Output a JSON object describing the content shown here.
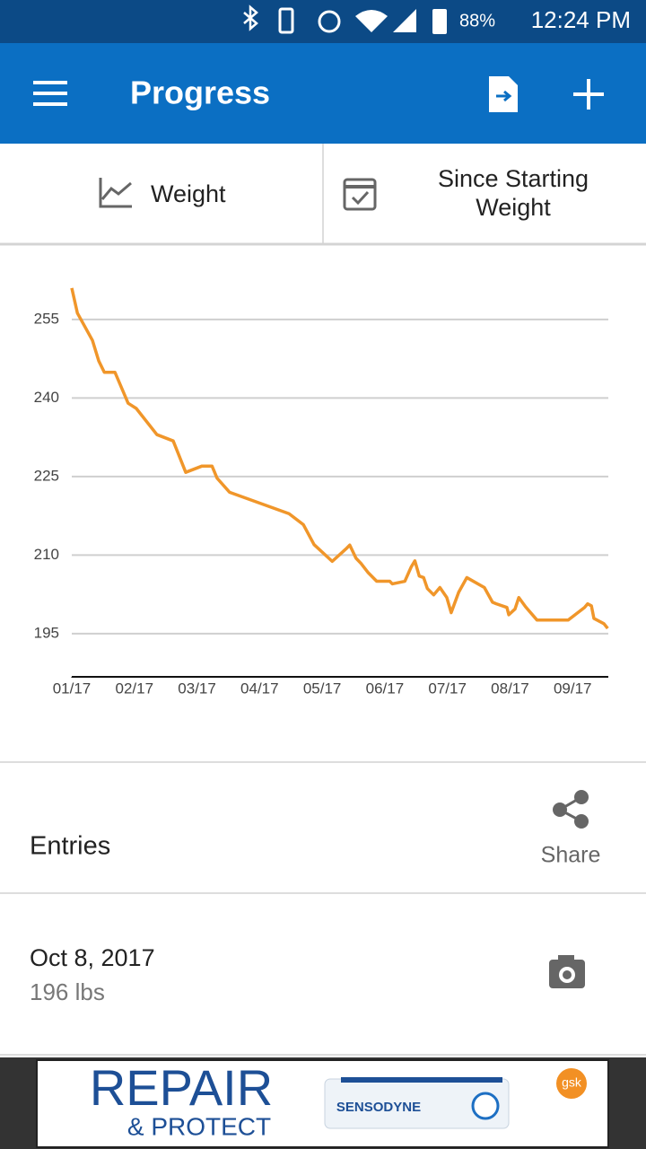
{
  "status_bar": {
    "battery": "88%",
    "time": "12:24 PM"
  },
  "app_bar": {
    "title": "Progress"
  },
  "tabs": {
    "metric": "Weight",
    "range_lines": [
      "Since Starting",
      "Weight"
    ]
  },
  "chart_data": {
    "type": "line",
    "x": [
      1.0,
      1.09,
      1.33,
      1.43,
      1.52,
      1.69,
      1.9,
      2.03,
      2.36,
      2.62,
      2.82,
      3.08,
      3.24,
      3.32,
      3.52,
      4.47,
      4.7,
      4.87,
      5.16,
      5.39,
      5.44,
      5.54,
      5.62,
      5.73,
      5.87,
      6.08,
      6.12,
      6.32,
      6.42,
      6.48,
      6.55,
      6.62,
      6.68,
      6.78,
      6.88,
      6.99,
      7.06,
      7.18,
      7.31,
      7.59,
      7.72,
      7.78,
      7.95,
      7.98,
      8.08,
      8.14,
      8.25,
      8.43,
      8.93,
      9.19,
      9.24,
      9.3,
      9.34,
      9.5,
      9.56
    ],
    "series": [
      {
        "color": "#f0962a",
        "values": [
          261.0,
          256.2,
          251.0,
          247.1,
          244.9,
          244.9,
          239.0,
          238.0,
          233.0,
          231.8,
          225.8,
          227.0,
          227.0,
          224.7,
          222.0,
          217.9,
          215.8,
          212.0,
          208.8,
          211.3,
          211.9,
          209.4,
          208.4,
          206.7,
          205.0,
          205.0,
          204.5,
          205.0,
          207.7,
          208.9,
          206.0,
          205.7,
          203.6,
          202.4,
          203.8,
          201.9,
          199.0,
          202.9,
          205.7,
          203.8,
          201.0,
          200.7,
          200.0,
          198.6,
          199.7,
          201.9,
          200.1,
          197.6,
          197.6,
          200.0,
          200.7,
          200.3,
          197.9,
          196.9,
          196.0
        ]
      }
    ],
    "xlim": [
      1,
      9.57
    ],
    "xticks": [
      {
        "value": 1,
        "label": "01/17"
      },
      {
        "value": 2,
        "label": "02/17"
      },
      {
        "value": 3,
        "label": "03/17"
      },
      {
        "value": 4,
        "label": "04/17"
      },
      {
        "value": 5,
        "label": "05/17"
      },
      {
        "value": 6,
        "label": "06/17"
      },
      {
        "value": 7,
        "label": "07/17"
      },
      {
        "value": 8,
        "label": "08/17"
      },
      {
        "value": 9,
        "label": "09/17"
      }
    ],
    "ylim": [
      186.75,
      262
    ],
    "yticks": [
      195,
      210,
      225,
      240,
      255
    ],
    "grid": true
  },
  "entries": {
    "title": "Entries",
    "share": "Share",
    "items": [
      {
        "date": "Oct 8, 2017",
        "weight": "196 lbs"
      }
    ]
  },
  "ad": {
    "headline": "REPAIR",
    "subline": "& PROTECT",
    "brand": "SENSODYNE",
    "maker": "gsk"
  }
}
